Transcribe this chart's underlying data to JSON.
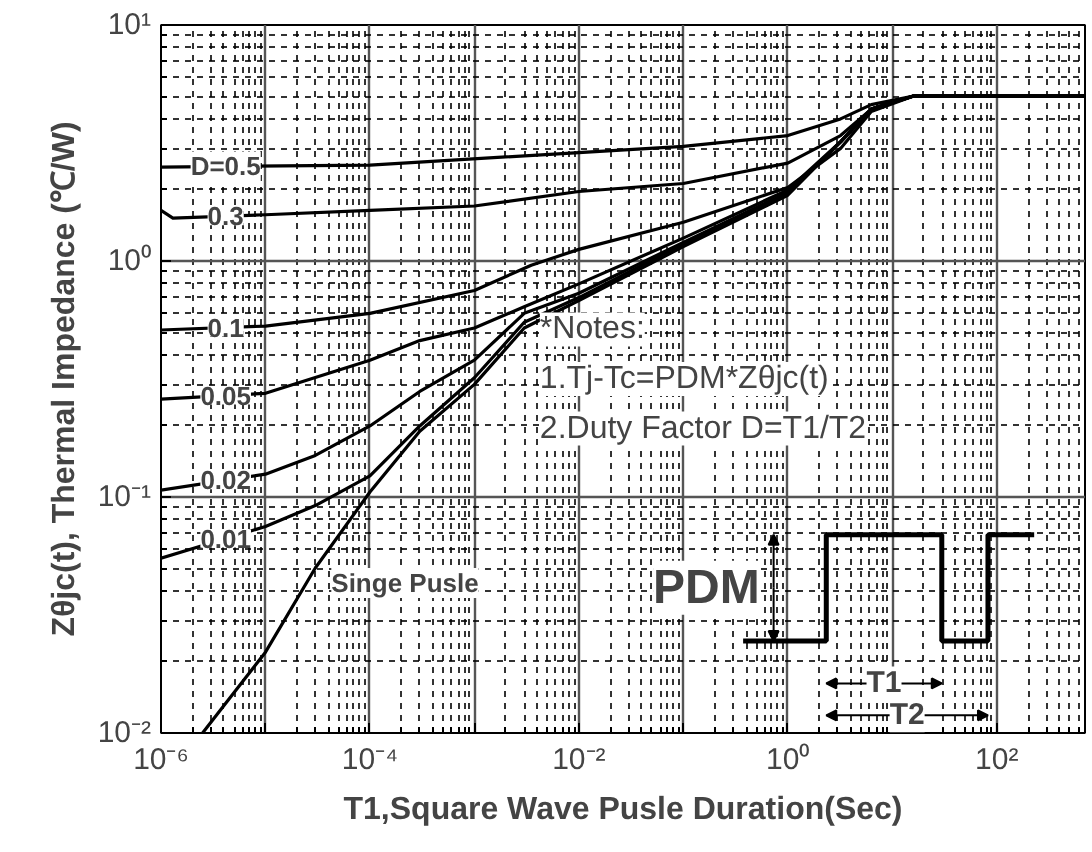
{
  "chart_data": {
    "type": "line",
    "xlabel": "T1,Square Wave Pusle Duration(Sec)",
    "ylabel": "Zθjc(t), Thermal Impedance (℃/W)",
    "log": "xy",
    "grid": true,
    "marker": "none",
    "line_style": "solid",
    "xlim": [
      1e-06,
      700
    ],
    "ylim": [
      0.01,
      10
    ],
    "xticks": [
      {
        "value": 1e-06,
        "label": "10⁻⁶"
      },
      {
        "value": 1e-05,
        "label": null
      },
      {
        "value": 0.0001,
        "label": "10⁻⁴"
      },
      {
        "value": 0.001,
        "label": null
      },
      {
        "value": 0.01,
        "label": "10⁻²"
      },
      {
        "value": 0.1,
        "label": null
      },
      {
        "value": 1,
        "label": "10⁰"
      },
      {
        "value": 10,
        "label": null
      },
      {
        "value": 100,
        "label": "10²"
      }
    ],
    "yticks": [
      {
        "value": 0.01,
        "label": "10⁻²"
      },
      {
        "value": 0.1,
        "label": "10⁻¹"
      },
      {
        "value": 1,
        "label": "10⁰"
      },
      {
        "value": 10,
        "label": "10¹"
      }
    ],
    "series": [
      {
        "name": "D=0.5",
        "color": "#000000",
        "x": [
          1e-06,
          0.0001,
          0.01,
          0.1,
          1,
          3.2,
          6.3,
          16,
          700
        ],
        "values": [
          2.5,
          2.55,
          2.88,
          3.06,
          3.4,
          4.0,
          4.6,
          5.0,
          5.0
        ]
      },
      {
        "name": "0.3",
        "color": "#000000",
        "x": [
          1e-06,
          1.3e-06,
          1e-05,
          0.0001,
          0.001,
          0.01,
          0.1,
          1,
          3.2,
          6.3,
          16,
          700
        ],
        "values": [
          1.64,
          1.52,
          1.57,
          1.64,
          1.71,
          1.97,
          2.13,
          2.6,
          3.4,
          4.4,
          5.0,
          5.0
        ]
      },
      {
        "name": "0.1",
        "color": "#000000",
        "x": [
          1e-06,
          1e-05,
          0.0001,
          0.001,
          0.0035,
          0.01,
          0.1,
          1,
          3.2,
          6.3,
          16,
          700
        ],
        "values": [
          0.51,
          0.53,
          0.6,
          0.75,
          0.96,
          1.12,
          1.46,
          2.05,
          3.0,
          4.3,
          5.0,
          5.0
        ]
      },
      {
        "name": "0.05",
        "color": "#000000",
        "x": [
          1e-06,
          1e-05,
          0.0001,
          0.0003,
          0.001,
          0.003,
          0.01,
          0.1,
          1,
          3.2,
          6.3,
          16,
          700
        ],
        "values": [
          0.26,
          0.275,
          0.38,
          0.46,
          0.52,
          0.64,
          0.8,
          1.25,
          2.0,
          3.2,
          4.4,
          5.0,
          5.0
        ]
      },
      {
        "name": "0.02",
        "color": "#000000",
        "x": [
          1e-06,
          1e-05,
          3e-05,
          0.0001,
          0.0003,
          0.001,
          0.003,
          0.01,
          0.1,
          1,
          3.2,
          6.3,
          16,
          700
        ],
        "values": [
          0.107,
          0.125,
          0.15,
          0.2,
          0.28,
          0.38,
          0.6,
          0.73,
          1.2,
          1.95,
          3.2,
          4.4,
          5.0,
          5.0
        ]
      },
      {
        "name": "0.01",
        "color": "#000000",
        "x": [
          1e-06,
          1e-05,
          3e-05,
          0.0001,
          0.0003,
          0.001,
          0.003,
          0.01,
          0.1,
          1,
          3.2,
          6.3,
          16,
          700
        ],
        "values": [
          0.055,
          0.075,
          0.092,
          0.123,
          0.2,
          0.32,
          0.55,
          0.7,
          1.18,
          1.93,
          3.2,
          4.4,
          5.0,
          5.0
        ]
      },
      {
        "name": "Singe Pusle",
        "color": "#000000",
        "x": [
          2.5e-06,
          1e-05,
          3e-05,
          0.0001,
          0.0003,
          0.001,
          0.003,
          0.01,
          0.1,
          1,
          3.2,
          6.3,
          16,
          700
        ],
        "values": [
          0.01,
          0.022,
          0.05,
          0.105,
          0.19,
          0.3,
          0.52,
          0.68,
          1.15,
          1.9,
          3.2,
          4.4,
          5.0,
          5.0
        ]
      }
    ],
    "annotations": [
      "*Notes:",
      "1.Tj-Tc=PDM*Zθjc(t)",
      "2.Duty Factor D=T1/T2",
      "PDM",
      "T1",
      "T2"
    ]
  }
}
